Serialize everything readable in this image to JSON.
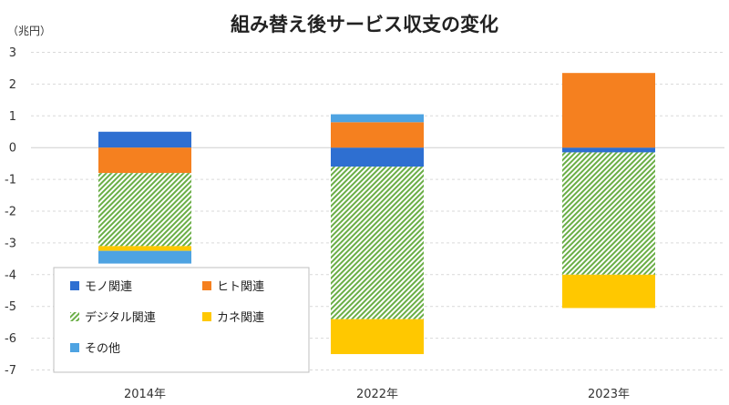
{
  "chart_data": {
    "type": "bar",
    "stacked": true,
    "title": "組み替え後サービス収支の変化",
    "unit_label": "（兆円）",
    "categories": [
      "2014年",
      "2022年",
      "2023年"
    ],
    "y_ticks": [
      "3",
      "2",
      "1",
      "0",
      "-1",
      "-2",
      "-3",
      "-4",
      "-5",
      "-6",
      "-7"
    ],
    "ylim": [
      -7,
      3
    ],
    "grid": true,
    "legend_position": "bottom-left",
    "series": [
      {
        "name": "モノ関連",
        "color": "#2e6fd1",
        "pattern": "solid",
        "values": [
          0.5,
          -0.6,
          -0.15
        ]
      },
      {
        "name": "ヒト関連",
        "color": "#f5801f",
        "pattern": "solid",
        "values": [
          -0.8,
          0.8,
          2.35
        ]
      },
      {
        "name": "デジタル関連",
        "color": "#6aae46",
        "pattern": "hatch",
        "values": [
          -2.3,
          -4.8,
          -3.85
        ]
      },
      {
        "name": "カネ関連",
        "color": "#ffc800",
        "pattern": "solid",
        "values": [
          -0.15,
          -1.1,
          -1.05
        ]
      },
      {
        "name": "その他",
        "color": "#4ea3e2",
        "pattern": "solid",
        "values": [
          -0.4,
          0.25,
          0.0
        ]
      }
    ]
  }
}
